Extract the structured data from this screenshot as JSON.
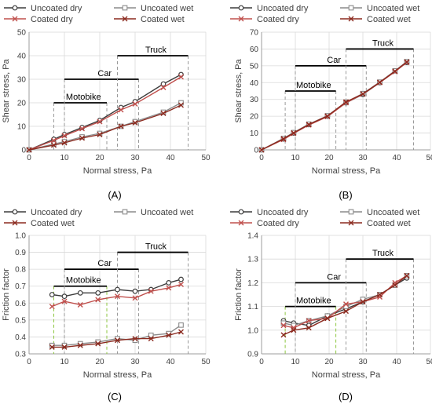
{
  "figure": {
    "colors": {
      "uncoated_dry": "#3c3c3c",
      "uncoated_wet": "#8a8a8a",
      "coated_dry": "#c0504d",
      "coated_wet": "#8b2a1f",
      "grid": "#d9d9d9",
      "axis": "#9c9c9c",
      "ref_line": "#000000",
      "dash_gray": "#9a9a9a",
      "dash_green": "#8cc63f"
    }
  },
  "chart_data": [
    {
      "id": "A",
      "type": "line",
      "panel_label": "(A)",
      "xlabel": "Normal stress, Pa",
      "ylabel": "Shear stress, Pa",
      "xlim": [
        0,
        50
      ],
      "ylim": [
        0,
        50
      ],
      "xticks": [
        0,
        10,
        20,
        30,
        40,
        50
      ],
      "yticks": [
        0,
        10,
        20,
        30,
        40,
        50
      ],
      "grid": true,
      "legend": {
        "placement": "top",
        "entries": [
          {
            "label": "Uncoated dry",
            "series": 0
          },
          {
            "label": "Uncoated wet",
            "series": 1
          },
          {
            "label": "Coated dry",
            "series": 2
          },
          {
            "label": "Coated wet",
            "series": 3
          }
        ]
      },
      "series": [
        {
          "name": "Uncoated dry",
          "marker": "circle",
          "color": "#3c3c3c",
          "x": [
            0,
            7,
            10,
            15,
            20,
            26,
            30,
            38,
            43
          ],
          "y": [
            0,
            4.5,
            6.5,
            9.5,
            12.5,
            18,
            20.5,
            28,
            32
          ]
        },
        {
          "name": "Uncoated wet",
          "marker": "square",
          "color": "#8a8a8a",
          "x": [
            0,
            7,
            10,
            15,
            20,
            26,
            30,
            38,
            43
          ],
          "y": [
            0,
            2.5,
            3.5,
            5.5,
            7,
            10,
            12,
            16,
            20
          ]
        },
        {
          "name": "Coated dry",
          "marker": "x",
          "color": "#c0504d",
          "x": [
            0,
            7,
            10,
            15,
            20,
            26,
            30,
            38,
            43
          ],
          "y": [
            0,
            4,
            6,
            9,
            12,
            17,
            19.5,
            26.5,
            31
          ]
        },
        {
          "name": "Coated wet",
          "marker": "x",
          "color": "#8b2a1f",
          "x": [
            0,
            7,
            10,
            15,
            20,
            26,
            30,
            38,
            43
          ],
          "y": [
            0,
            2,
            3,
            5,
            6.5,
            10,
            11.5,
            15.5,
            19
          ]
        }
      ],
      "ranges": [
        {
          "label": "Motobike",
          "x0": 7,
          "x1": 22,
          "y": 20
        },
        {
          "label": "Car",
          "x0": 10,
          "x1": 31,
          "y": 30
        },
        {
          "label": "Truck",
          "x0": 25,
          "x1": 45,
          "y": 40
        }
      ]
    },
    {
      "id": "B",
      "type": "line",
      "panel_label": "(B)",
      "xlabel": "Normal stress, Pa",
      "ylabel": "Shear stress, Pa",
      "xlim": [
        0,
        50
      ],
      "ylim": [
        0,
        70
      ],
      "xticks": [
        0,
        10,
        20,
        30,
        40,
        50
      ],
      "yticks": [
        0,
        10,
        20,
        30,
        40,
        50,
        60,
        70
      ],
      "grid": true,
      "legend": {
        "placement": "top",
        "entries": [
          {
            "label": "Uncoated dry",
            "series": 0
          },
          {
            "label": "Uncoated wet",
            "series": 1
          },
          {
            "label": "Coated dry",
            "series": 2
          },
          {
            "label": "Coated wet",
            "series": 3
          }
        ]
      },
      "series": [
        {
          "name": "Uncoated dry",
          "marker": "circle",
          "color": "#3c3c3c",
          "x": [
            0,
            6.5,
            9.5,
            14,
            19.5,
            25,
            30,
            35,
            39.5,
            43
          ],
          "y": [
            0,
            6.5,
            10,
            15,
            20,
            28,
            33,
            40,
            47,
            52
          ]
        },
        {
          "name": "Uncoated wet",
          "marker": "square",
          "color": "#8a8a8a",
          "x": [
            0,
            6.5,
            9.5,
            14,
            19.5,
            25,
            30,
            35,
            39.5,
            43
          ],
          "y": [
            0,
            6.8,
            10.3,
            15.3,
            20.3,
            28.3,
            33.5,
            40.3,
            47,
            52.5
          ]
        },
        {
          "name": "Coated dry",
          "marker": "x",
          "color": "#c0504d",
          "x": [
            0,
            6.5,
            9.5,
            14,
            19.5,
            25,
            30,
            35,
            39.5,
            43
          ],
          "y": [
            0,
            6.2,
            9.8,
            14.8,
            19.8,
            28,
            33.2,
            40,
            46.5,
            52
          ]
        },
        {
          "name": "Coated wet",
          "marker": "x",
          "color": "#8b2a1f",
          "x": [
            0,
            6.5,
            9.5,
            14,
            19.5,
            25,
            30,
            35,
            39.5,
            43
          ],
          "y": [
            0,
            6.6,
            10.1,
            15.1,
            20.1,
            28.5,
            33.3,
            40.2,
            46.8,
            52.3
          ]
        }
      ],
      "ranges": [
        {
          "label": "Motobike",
          "x0": 7,
          "x1": 22,
          "y": 35
        },
        {
          "label": "Car",
          "x0": 10,
          "x1": 31,
          "y": 50
        },
        {
          "label": "Truck",
          "x0": 25,
          "x1": 45,
          "y": 60
        }
      ]
    },
    {
      "id": "C",
      "type": "line",
      "panel_label": "(C)",
      "xlabel": "Normal stress, Pa",
      "ylabel": "Friction factor",
      "xlim": [
        0,
        50
      ],
      "ylim": [
        0.3,
        1.0
      ],
      "xticks": [
        0,
        10,
        20,
        30,
        40,
        50
      ],
      "yticks": [
        0.3,
        0.4,
        0.5,
        0.6,
        0.7,
        0.8,
        0.9,
        1.0
      ],
      "grid": true,
      "legend": {
        "placement": "top",
        "entries": [
          {
            "label": "Uncoated dry",
            "series": 0
          },
          {
            "label": "Uncoated wet",
            "series": 1
          },
          {
            "label": "Coated wet",
            "series": 3
          }
        ]
      },
      "series": [
        {
          "name": "Uncoated dry",
          "marker": "circle",
          "color": "#3c3c3c",
          "x": [
            6.5,
            10,
            14.5,
            19.5,
            25,
            30,
            34.5,
            39.5,
            43
          ],
          "y": [
            0.65,
            0.64,
            0.66,
            0.66,
            0.68,
            0.67,
            0.68,
            0.72,
            0.74
          ]
        },
        {
          "name": "Uncoated wet",
          "marker": "square",
          "color": "#8a8a8a",
          "x": [
            6.5,
            10,
            14.5,
            19.5,
            25,
            30,
            34.5,
            39.5,
            43
          ],
          "y": [
            0.35,
            0.35,
            0.36,
            0.37,
            0.39,
            0.38,
            0.41,
            0.42,
            0.47
          ]
        },
        {
          "name": "Coated dry",
          "marker": "x",
          "color": "#c0504d",
          "x": [
            6.5,
            10,
            14.5,
            19.5,
            25,
            30,
            34.5,
            39.5,
            43
          ],
          "y": [
            0.58,
            0.61,
            0.59,
            0.62,
            0.64,
            0.63,
            0.67,
            0.69,
            0.71
          ]
        },
        {
          "name": "Coated wet",
          "marker": "x",
          "color": "#8b2a1f",
          "x": [
            6.5,
            10,
            14.5,
            19.5,
            25,
            30,
            34.5,
            39.5,
            43
          ],
          "y": [
            0.34,
            0.34,
            0.35,
            0.36,
            0.38,
            0.39,
            0.39,
            0.41,
            0.43
          ]
        }
      ],
      "ranges": [
        {
          "label": "Motobike",
          "x0": 7,
          "x1": 22,
          "y": 0.7
        },
        {
          "label": "Car",
          "x0": 10,
          "x1": 31,
          "y": 0.8
        },
        {
          "label": "Truck",
          "x0": 25,
          "x1": 45,
          "y": 0.9
        }
      ]
    },
    {
      "id": "D",
      "type": "line",
      "panel_label": "(D)",
      "xlabel": "Normal stress, Pa",
      "ylabel": "Friction factor",
      "xlim": [
        0,
        50
      ],
      "ylim": [
        0.9,
        1.4
      ],
      "xticks": [
        0,
        10,
        20,
        30,
        40,
        50
      ],
      "yticks": [
        0.9,
        1.0,
        1.1,
        1.2,
        1.3,
        1.4
      ],
      "grid": true,
      "legend": {
        "placement": "top",
        "entries": [
          {
            "label": "Uncoated dry",
            "series": 0
          },
          {
            "label": "Uncoated wet",
            "series": 1
          },
          {
            "label": "Coated dry",
            "series": 2
          },
          {
            "label": "Coated wet",
            "series": 3
          }
        ]
      },
      "series": [
        {
          "name": "Uncoated dry",
          "marker": "circle",
          "color": "#3c3c3c",
          "x": [
            6.5,
            9.5,
            14,
            19.5,
            25,
            30,
            35,
            39.5,
            43
          ],
          "y": [
            1.04,
            1.03,
            1.02,
            1.06,
            1.09,
            1.12,
            1.15,
            1.19,
            1.22
          ]
        },
        {
          "name": "Uncoated wet",
          "marker": "square",
          "color": "#8a8a8a",
          "x": [
            6.5,
            9.5,
            14,
            19.5,
            25,
            30,
            35,
            39.5,
            43
          ],
          "y": [
            1.03,
            1.02,
            1.04,
            1.06,
            1.1,
            1.13,
            1.15,
            1.19,
            1.23
          ]
        },
        {
          "name": "Coated dry",
          "marker": "x",
          "color": "#c0504d",
          "x": [
            6.5,
            9.5,
            14,
            19.5,
            25,
            30,
            35,
            39.5,
            43
          ],
          "y": [
            1.02,
            1.01,
            1.04,
            1.05,
            1.11,
            1.12,
            1.14,
            1.2,
            1.23
          ]
        },
        {
          "name": "Coated wet",
          "marker": "x",
          "color": "#8b2a1f",
          "x": [
            6.5,
            9.5,
            14,
            19.5,
            25,
            30,
            35,
            39.5,
            43
          ],
          "y": [
            0.98,
            1.0,
            1.01,
            1.05,
            1.08,
            1.12,
            1.15,
            1.19,
            1.23
          ]
        }
      ],
      "ranges": [
        {
          "label": "Motobike",
          "x0": 7,
          "x1": 22,
          "y": 1.1
        },
        {
          "label": "Car",
          "x0": 10,
          "x1": 31,
          "y": 1.2
        },
        {
          "label": "Truck",
          "x0": 25,
          "x1": 45,
          "y": 1.3
        }
      ]
    }
  ]
}
